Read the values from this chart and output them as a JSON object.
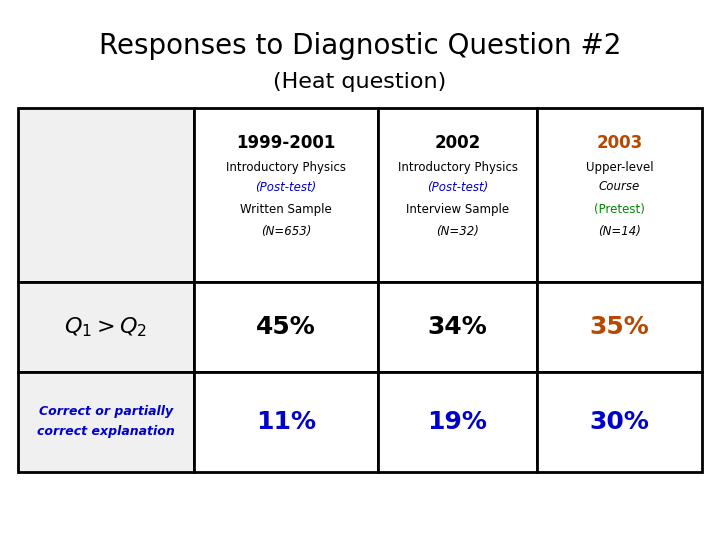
{
  "title_line1": "Responses to Diagnostic Question #2",
  "title_line2": "(Heat question)",
  "title_color": "#000000",
  "title_fontsize": 20,
  "subtitle_fontsize": 16,
  "col_headers": [
    {
      "year": "1999-2001",
      "year_color": "#000000",
      "line2": "Introductory Physics",
      "line2_color": "#000000",
      "line3": "(Post-test)",
      "line3_color": "#0000cc",
      "line4": "Written Sample",
      "line4_color": "#000000",
      "line5": "(N=653)",
      "line5_color": "#000000"
    },
    {
      "year": "2002",
      "year_color": "#000000",
      "line2": "Introductory Physics",
      "line2_color": "#000000",
      "line3": "(Post-test)",
      "line3_color": "#0000cc",
      "line4": "Interview Sample",
      "line4_color": "#000000",
      "line5": "(N=32)",
      "line5_color": "#000000"
    },
    {
      "year": "2003",
      "year_color": "#b84800",
      "line2": "Upper-level",
      "line2_color": "#000000",
      "line3": "Course",
      "line3_color": "#000000",
      "line4": "(Pretest)",
      "line4_color": "#008800",
      "line5": "(N=14)",
      "line5_color": "#000000"
    }
  ],
  "row1_label_color": "#000000",
  "row1_values": [
    "45%",
    "34%",
    "35%"
  ],
  "row1_value_colors": [
    "#000000",
    "#000000",
    "#b84800"
  ],
  "row2_label_line1": "Correct or partially",
  "row2_label_line2": "correct explanation",
  "row2_label_color": "#0000cc",
  "row2_values": [
    "11%",
    "19%",
    "30%"
  ],
  "row2_value_colors": [
    "#0000cc",
    "#0000cc",
    "#0000cc"
  ],
  "bg_color": "#ffffff",
  "table_border_color": "#000000",
  "header_col0_bg": "#ffffff",
  "data_col_bg": "#ffffff"
}
